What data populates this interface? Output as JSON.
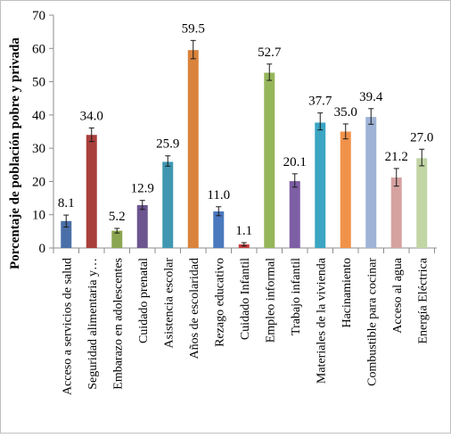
{
  "chart_data": {
    "type": "bar",
    "ylabel": "Porcentaje de población pobre y privada",
    "xlabel": "",
    "ylim": [
      0,
      70
    ],
    "yticks": [
      0,
      10,
      20,
      30,
      40,
      50,
      60,
      70
    ],
    "grid": false,
    "legend": "none",
    "categories": [
      "Acceso a servicios de salud",
      "Seguridad alimentaria y…",
      "Embarazo en adolescentes",
      "Cuidado prenatal",
      "Asistencia escolar",
      "Años de escolaridad",
      "Rezago educativo",
      "Cuidado Infantil",
      "Empleo informal",
      "Trabajo infantil",
      "Materiales de la vivienda",
      "Hacinamiento",
      "Combustible para cocinar",
      "Acceso al agua",
      "Energía Eléctrica"
    ],
    "values": [
      8.1,
      34.0,
      5.2,
      12.9,
      25.9,
      59.5,
      11.0,
      1.1,
      52.7,
      20.1,
      37.7,
      35.0,
      39.4,
      21.2,
      27.0
    ],
    "value_labels": [
      "8.1",
      "34.0",
      "5.2",
      "12.9",
      "25.9",
      "59.5",
      "11.0",
      "1.1",
      "52.7",
      "20.1",
      "37.7",
      "35.0",
      "39.4",
      "21.2",
      "27.0"
    ],
    "error_low": [
      6.3,
      32.0,
      4.5,
      11.6,
      24.6,
      56.9,
      9.7,
      0.6,
      50.4,
      18.3,
      35.5,
      32.8,
      37.2,
      18.6,
      24.7
    ],
    "error_high": [
      9.9,
      36.1,
      5.9,
      14.3,
      27.7,
      62.4,
      12.4,
      1.6,
      55.3,
      22.3,
      40.6,
      37.3,
      41.9,
      23.9,
      29.7
    ],
    "colors": [
      "#4a6fa8",
      "#a9403c",
      "#8ba650",
      "#6d558f",
      "#3f98b0",
      "#d9833c",
      "#4a79be",
      "#c6403f",
      "#96b65a",
      "#7e5ea4",
      "#3ba5c3",
      "#f1924a",
      "#9fb3d7",
      "#d6a2a0",
      "#c2d6a5"
    ]
  }
}
